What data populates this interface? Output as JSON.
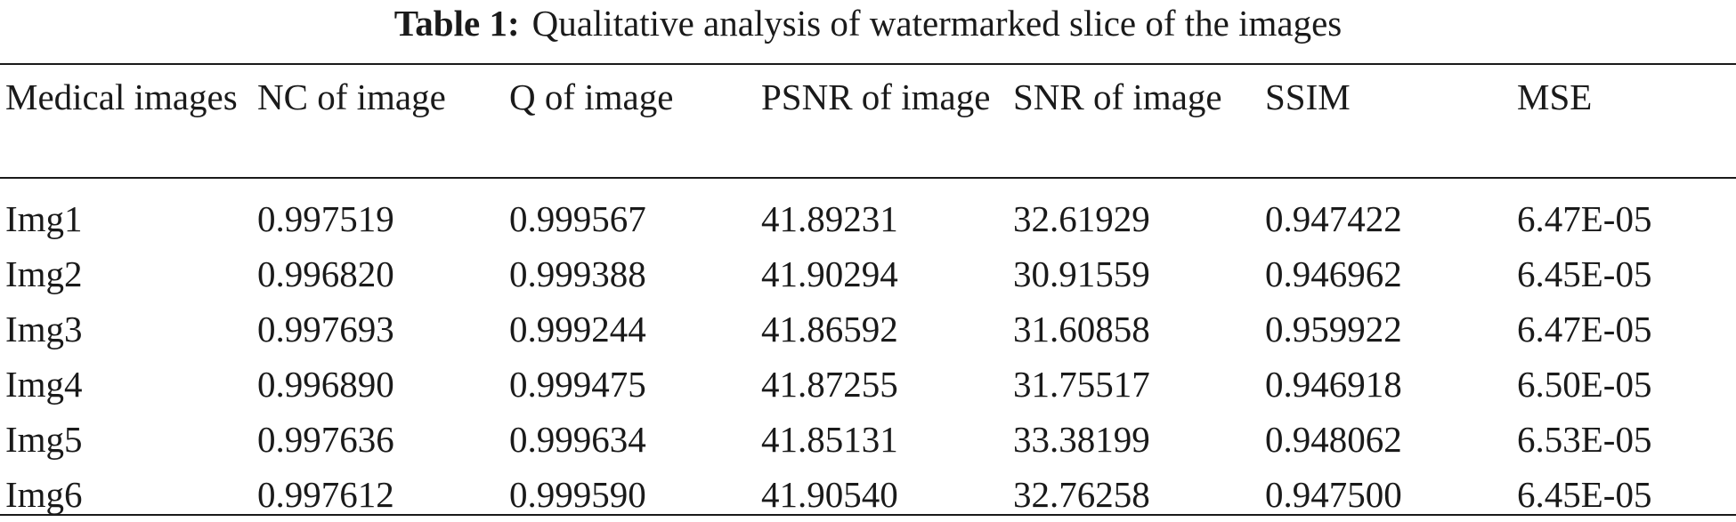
{
  "caption": {
    "label": "Table 1:",
    "text": "Qualitative analysis of watermarked slice of the images"
  },
  "table": {
    "headers": [
      "Medical images",
      "NC of image",
      "Q of image",
      "PSNR of image",
      "SNR of image",
      "SSIM",
      "MSE"
    ],
    "rows": [
      [
        "Img1",
        "0.997519",
        "0.999567",
        "41.89231",
        "32.61929",
        "0.947422",
        "6.47E-05"
      ],
      [
        "Img2",
        "0.996820",
        "0.999388",
        "41.90294",
        "30.91559",
        "0.946962",
        "6.45E-05"
      ],
      [
        "Img3",
        "0.997693",
        "0.999244",
        "41.86592",
        "31.60858",
        "0.959922",
        "6.47E-05"
      ],
      [
        "Img4",
        "0.996890",
        "0.999475",
        "41.87255",
        "31.75517",
        "0.946918",
        "6.50E-05"
      ],
      [
        "Img5",
        "0.997636",
        "0.999634",
        "41.85131",
        "33.38199",
        "0.948062",
        "6.53E-05"
      ],
      [
        "Img6",
        "0.997612",
        "0.999590",
        "41.90540",
        "32.76258",
        "0.947500",
        "6.45E-05"
      ]
    ]
  }
}
